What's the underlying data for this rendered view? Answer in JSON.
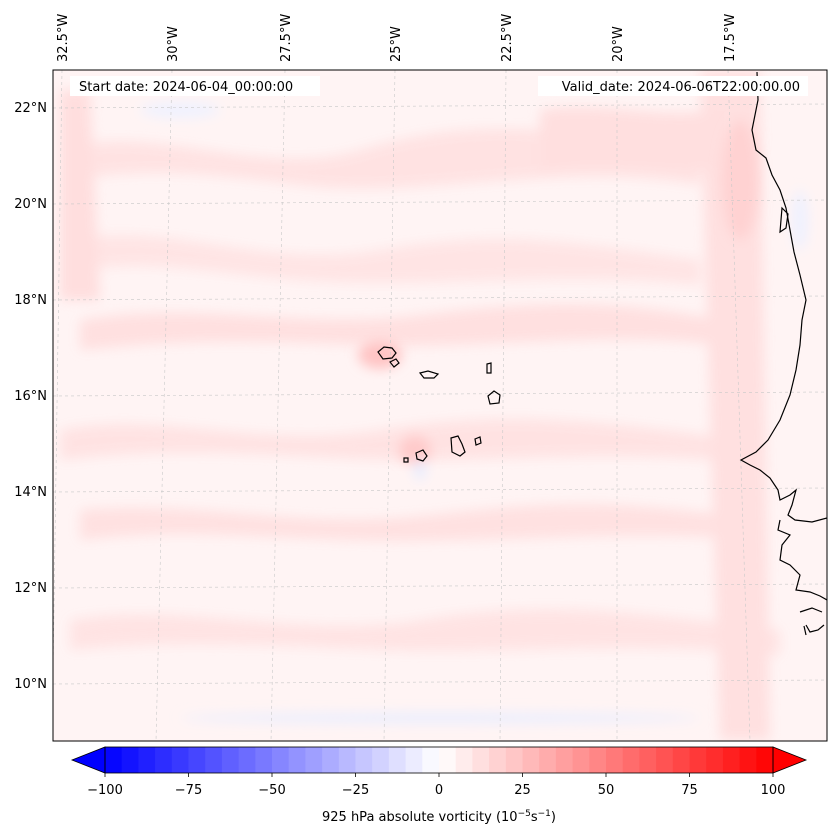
{
  "header": {
    "start_date": "Start date: 2024-06-04_00:00:00",
    "valid_date": "Valid_date: 2024-06-06T22:00:00.00"
  },
  "axes": {
    "longitude_labels": [
      "32.5°W",
      "30°W",
      "27.5°W",
      "25°W",
      "22.5°W",
      "20°W",
      "17.5°W"
    ],
    "latitude_labels": [
      "22°N",
      "20°N",
      "18°N",
      "16°N",
      "14°N",
      "12°N",
      "10°N"
    ],
    "gridlines": true,
    "gridline_style": "dashed"
  },
  "colorbar": {
    "label_prefix": "925 hPa absolute vorticity (10",
    "label_exp1": "−5",
    "label_mid": "s",
    "label_exp2": "−1",
    "label_suffix": ")",
    "ticks": [
      "−100",
      "−75",
      "−50",
      "−25",
      "0",
      "25",
      "50",
      "75",
      "100"
    ],
    "vmin": -100,
    "vmax": 100,
    "levels": 41,
    "colormap": "bwr",
    "extend": "both",
    "color_min": "#0000ff",
    "color_mid": "#ffffff",
    "color_max": "#ff0000"
  },
  "map": {
    "background_field": "weak positive vorticity (light pink)",
    "coastline_color": "#000000"
  }
}
